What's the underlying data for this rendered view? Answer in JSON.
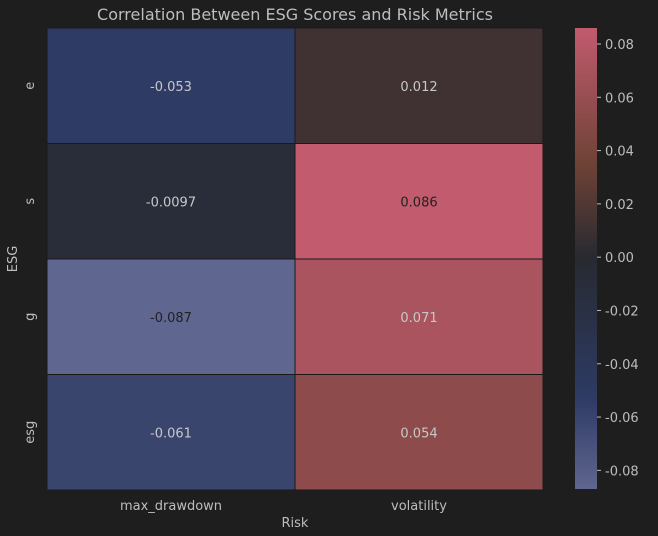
{
  "chart_data": {
    "type": "heatmap",
    "title": "Correlation Between ESG Scores and Risk Metrics",
    "xlabel": "Risk",
    "ylabel": "ESG",
    "x": [
      "max_drawdown",
      "volatility"
    ],
    "y": [
      "e",
      "s",
      "g",
      "esg"
    ],
    "values": [
      [
        -0.053,
        0.012
      ],
      [
        -0.0097,
        0.086
      ],
      [
        -0.087,
        0.071
      ],
      [
        -0.061,
        0.054
      ]
    ],
    "value_labels": [
      [
        "-0.053",
        "0.012"
      ],
      [
        "-0.0097",
        "0.086"
      ],
      [
        "-0.087",
        "0.071"
      ],
      [
        "-0.061",
        "0.054"
      ]
    ],
    "colorbar": {
      "range": [
        -0.087,
        0.086
      ],
      "ticks": [
        -0.08,
        -0.06,
        -0.04,
        -0.02,
        0.0,
        0.02,
        0.04,
        0.06,
        0.08
      ],
      "tick_labels": [
        "-0.08",
        "-0.06",
        "-0.04",
        "-0.02",
        "0.00",
        "0.02",
        "0.04",
        "0.06",
        "0.08"
      ]
    },
    "colormap": {
      "low": "#5f6690",
      "low_mid": "#2d3a63",
      "center": "#282a30",
      "high_mid": "#6d4236",
      "high": "#c25b6e"
    }
  }
}
